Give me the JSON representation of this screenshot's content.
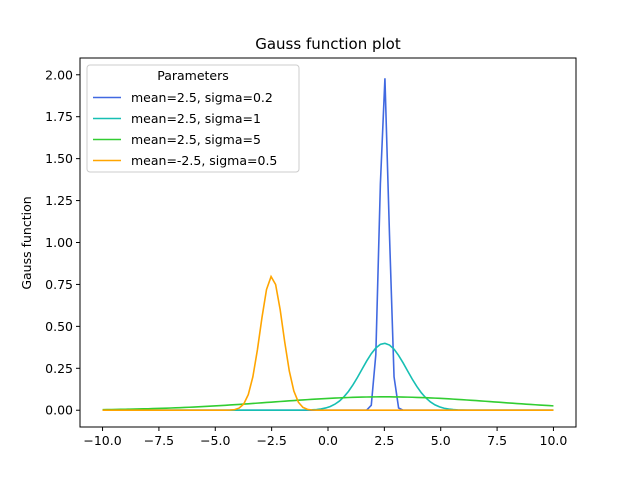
{
  "chart_data": {
    "type": "line",
    "title": "Gauss function plot",
    "xlabel": "",
    "ylabel": "Gauss function",
    "xlim": [
      -11,
      11
    ],
    "ylim": [
      -0.1,
      2.1
    ],
    "x_range": [
      -10,
      10
    ],
    "xticks": [
      -10.0,
      -7.5,
      -5.0,
      -2.5,
      0.0,
      2.5,
      5.0,
      7.5,
      10.0
    ],
    "xtick_labels": [
      "−10.0",
      "−7.5",
      "−5.0",
      "−2.5",
      "0.0",
      "2.5",
      "5.0",
      "7.5",
      "10.0"
    ],
    "yticks": [
      0.0,
      0.25,
      0.5,
      0.75,
      1.0,
      1.25,
      1.5,
      1.75,
      2.0
    ],
    "ytick_labels": [
      "0.00",
      "0.25",
      "0.50",
      "0.75",
      "1.00",
      "1.25",
      "1.50",
      "1.75",
      "2.00"
    ],
    "grid": false,
    "legend": {
      "title": "Parameters",
      "placement": "top-left"
    },
    "series": [
      {
        "name": "mean=2.5, sigma=0.2",
        "mean": 2.5,
        "sigma": 0.2,
        "color": "#4169e1"
      },
      {
        "name": "mean=2.5, sigma=1",
        "mean": 2.5,
        "sigma": 1,
        "color": "#17bfb3"
      },
      {
        "name": "mean=2.5, sigma=5",
        "mean": 2.5,
        "sigma": 5,
        "color": "#32cd32"
      },
      {
        "name": "mean=-2.5, sigma=0.5",
        "mean": -2.5,
        "sigma": 0.5,
        "color": "#ffa500"
      }
    ]
  }
}
